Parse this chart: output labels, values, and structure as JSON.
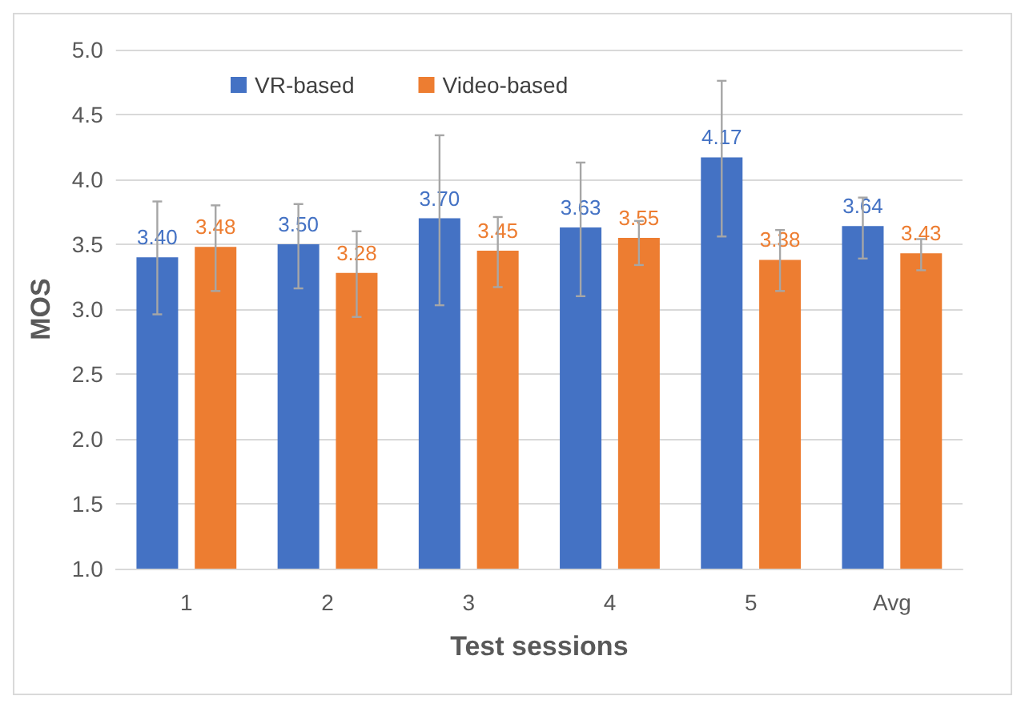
{
  "chart_data": {
    "type": "bar",
    "xlabel": "Test sessions",
    "ylabel": "MOS",
    "categories": [
      "1",
      "2",
      "3",
      "4",
      "5",
      "Avg"
    ],
    "series": [
      {
        "name": "VR-based",
        "color": "#4472c4",
        "values": [
          3.4,
          3.5,
          3.7,
          3.63,
          4.17,
          3.64
        ],
        "value_labels": [
          "3.40",
          "3.50",
          "3.70",
          "3.63",
          "4.17",
          "3.64"
        ],
        "errors": [
          [
            2.96,
            3.83
          ],
          [
            3.16,
            3.81
          ],
          [
            3.03,
            4.34
          ],
          [
            3.1,
            4.13
          ],
          [
            3.56,
            4.76
          ],
          [
            3.39,
            3.86
          ]
        ]
      },
      {
        "name": "Video-based",
        "color": "#ed7d31",
        "values": [
          3.48,
          3.28,
          3.45,
          3.55,
          3.38,
          3.43
        ],
        "value_labels": [
          "3.48",
          "3.28",
          "3.45",
          "3.55",
          "3.38",
          "3.43"
        ],
        "errors": [
          [
            3.14,
            3.8
          ],
          [
            2.94,
            3.6
          ],
          [
            3.17,
            3.71
          ],
          [
            3.34,
            3.68
          ],
          [
            3.14,
            3.61
          ],
          [
            3.3,
            3.54
          ]
        ]
      }
    ],
    "ylim": [
      1.0,
      5.0
    ],
    "yticks": [
      {
        "value": 1,
        "label": "1.0"
      },
      1.5,
      {
        "value": 2,
        "label": "2.0"
      },
      2.5,
      {
        "value": 3,
        "label": "3.0"
      },
      3.5,
      {
        "value": 4,
        "label": "4.0"
      },
      4.5,
      {
        "value": 5,
        "label": "5.0"
      }
    ],
    "grid": "y",
    "legend": "top left"
  }
}
